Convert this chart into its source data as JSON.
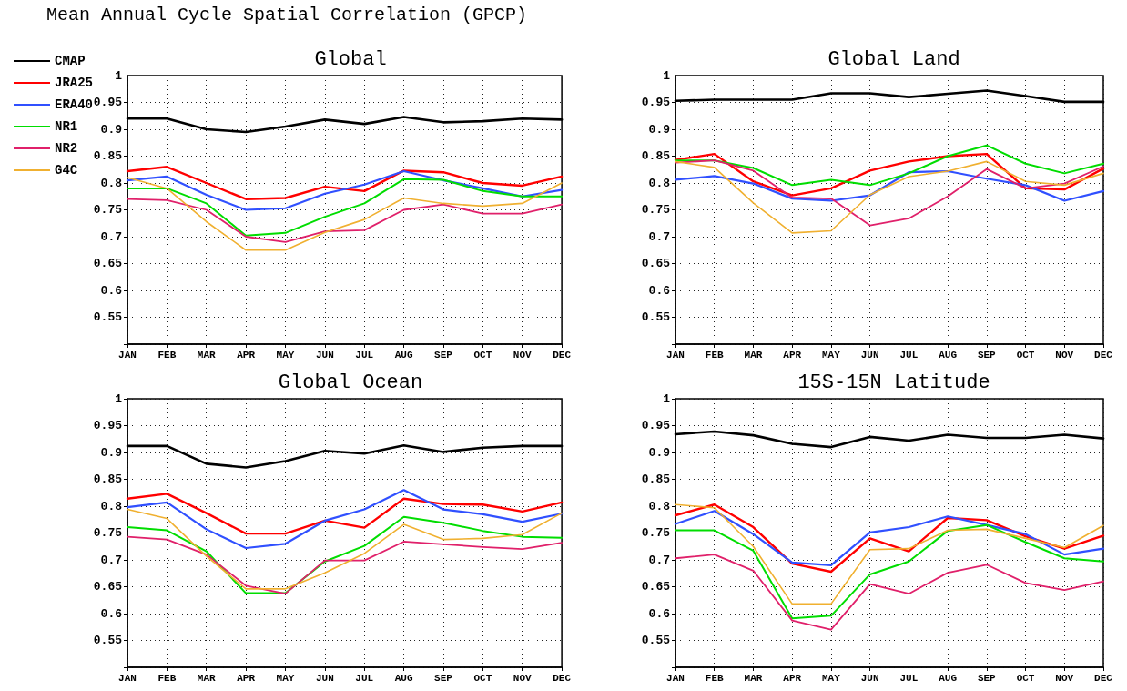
{
  "chart_data": [
    {
      "type": "line",
      "title": "Global",
      "annotations": [
        "Mean Annual Cycle Spatial Correlation (GPCP)"
      ],
      "legend": "left",
      "grid": true,
      "marker": "none",
      "line_style": "solid",
      "categories": [
        "JAN",
        "FEB",
        "MAR",
        "APR",
        "MAY",
        "JUN",
        "JUL",
        "AUG",
        "SEP",
        "OCT",
        "NOV",
        "DEC"
      ],
      "ylim": [
        0.5,
        1
      ],
      "yticks": [
        0.55,
        0.6,
        0.65,
        0.7,
        0.75,
        0.8,
        0.85,
        0.9,
        0.95,
        1
      ],
      "series": [
        {
          "name": "CMAP",
          "color": "#000000",
          "values": [
            0.92,
            0.92,
            0.9,
            0.895,
            0.905,
            0.918,
            0.91,
            0.923,
            0.913,
            0.915,
            0.92,
            0.918
          ]
        },
        {
          "name": "JRA25",
          "color": "#ff0000",
          "values": [
            0.822,
            0.83,
            0.8,
            0.77,
            0.772,
            0.793,
            0.785,
            0.823,
            0.82,
            0.8,
            0.795,
            0.812
          ]
        },
        {
          "name": "ERA40",
          "color": "#3050ff",
          "values": [
            0.805,
            0.812,
            0.778,
            0.75,
            0.753,
            0.78,
            0.797,
            0.822,
            0.805,
            0.79,
            0.775,
            0.787
          ]
        },
        {
          "name": "NR1",
          "color": "#00dd00",
          "values": [
            0.79,
            0.79,
            0.762,
            0.702,
            0.707,
            0.737,
            0.762,
            0.807,
            0.806,
            0.785,
            0.775,
            0.775
          ]
        },
        {
          "name": "NR2",
          "color": "#e0206a",
          "values": [
            0.77,
            0.768,
            0.75,
            0.7,
            0.69,
            0.71,
            0.712,
            0.75,
            0.76,
            0.743,
            0.743,
            0.76
          ]
        },
        {
          "name": "G4C",
          "color": "#f0b030",
          "values": [
            0.81,
            0.79,
            0.728,
            0.675,
            0.675,
            0.708,
            0.732,
            0.772,
            0.762,
            0.757,
            0.762,
            0.8
          ]
        }
      ]
    },
    {
      "type": "line",
      "title": "Global Land",
      "grid": true,
      "marker": "none",
      "line_style": "solid",
      "categories": [
        "JAN",
        "FEB",
        "MAR",
        "APR",
        "MAY",
        "JUN",
        "JUL",
        "AUG",
        "SEP",
        "OCT",
        "NOV",
        "DEC"
      ],
      "ylim": [
        0.5,
        1
      ],
      "yticks": [
        0.55,
        0.6,
        0.65,
        0.7,
        0.75,
        0.8,
        0.85,
        0.9,
        0.95,
        1
      ],
      "series": [
        {
          "color": "#000000",
          "values": [
            0.953,
            0.955,
            0.955,
            0.955,
            0.967,
            0.967,
            0.96,
            0.966,
            0.972,
            0.962,
            0.951,
            0.951
          ]
        },
        {
          "color": "#ff0000",
          "values": [
            0.843,
            0.854,
            0.803,
            0.777,
            0.79,
            0.823,
            0.84,
            0.85,
            0.854,
            0.79,
            0.788,
            0.827
          ]
        },
        {
          "color": "#3050ff",
          "values": [
            0.806,
            0.813,
            0.799,
            0.771,
            0.767,
            0.777,
            0.82,
            0.822,
            0.808,
            0.796,
            0.767,
            0.785
          ]
        },
        {
          "color": "#00dd00",
          "values": [
            0.842,
            0.842,
            0.828,
            0.796,
            0.806,
            0.796,
            0.818,
            0.85,
            0.87,
            0.836,
            0.818,
            0.836
          ]
        },
        {
          "color": "#e0206a",
          "values": [
            0.838,
            0.842,
            0.823,
            0.773,
            0.771,
            0.721,
            0.734,
            0.775,
            0.826,
            0.79,
            0.799,
            0.831
          ]
        },
        {
          "color": "#f0b030",
          "values": [
            0.84,
            0.829,
            0.763,
            0.707,
            0.711,
            0.778,
            0.812,
            0.822,
            0.84,
            0.803,
            0.796,
            0.818
          ]
        }
      ]
    },
    {
      "type": "line",
      "title": "Global Ocean",
      "grid": true,
      "marker": "none",
      "line_style": "solid",
      "categories": [
        "JAN",
        "FEB",
        "MAR",
        "APR",
        "MAY",
        "JUN",
        "JUL",
        "AUG",
        "SEP",
        "OCT",
        "NOV",
        "DEC"
      ],
      "ylim": [
        0.5,
        1
      ],
      "yticks": [
        0.55,
        0.6,
        0.65,
        0.7,
        0.75,
        0.8,
        0.85,
        0.9,
        0.95,
        1
      ],
      "series": [
        {
          "color": "#000000",
          "values": [
            0.912,
            0.912,
            0.879,
            0.872,
            0.884,
            0.903,
            0.898,
            0.913,
            0.901,
            0.909,
            0.912,
            0.912
          ]
        },
        {
          "color": "#ff0000",
          "values": [
            0.814,
            0.823,
            0.787,
            0.749,
            0.749,
            0.773,
            0.76,
            0.814,
            0.804,
            0.803,
            0.79,
            0.807
          ]
        },
        {
          "color": "#3050ff",
          "values": [
            0.798,
            0.807,
            0.757,
            0.722,
            0.73,
            0.773,
            0.794,
            0.83,
            0.794,
            0.785,
            0.771,
            0.786
          ]
        },
        {
          "color": "#00dd00",
          "values": [
            0.761,
            0.755,
            0.716,
            0.638,
            0.638,
            0.697,
            0.726,
            0.78,
            0.769,
            0.754,
            0.743,
            0.741
          ]
        },
        {
          "color": "#e0206a",
          "values": [
            0.743,
            0.738,
            0.71,
            0.652,
            0.637,
            0.699,
            0.699,
            0.734,
            0.729,
            0.724,
            0.72,
            0.732
          ]
        },
        {
          "color": "#f0b030",
          "values": [
            0.794,
            0.777,
            0.707,
            0.646,
            0.646,
            0.676,
            0.712,
            0.766,
            0.738,
            0.74,
            0.747,
            0.787
          ]
        }
      ]
    },
    {
      "type": "line",
      "title": "15S-15N Latitude",
      "grid": true,
      "marker": "none",
      "line_style": "solid",
      "categories": [
        "JAN",
        "FEB",
        "MAR",
        "APR",
        "MAY",
        "JUN",
        "JUL",
        "AUG",
        "SEP",
        "OCT",
        "NOV",
        "DEC"
      ],
      "ylim": [
        0.5,
        1
      ],
      "yticks": [
        0.55,
        0.6,
        0.65,
        0.7,
        0.75,
        0.8,
        0.85,
        0.9,
        0.95,
        1
      ],
      "series": [
        {
          "color": "#000000",
          "values": [
            0.934,
            0.939,
            0.932,
            0.916,
            0.91,
            0.929,
            0.922,
            0.933,
            0.927,
            0.927,
            0.933,
            0.926
          ]
        },
        {
          "color": "#ff0000",
          "values": [
            0.783,
            0.803,
            0.761,
            0.693,
            0.678,
            0.74,
            0.716,
            0.778,
            0.774,
            0.744,
            0.721,
            0.745
          ]
        },
        {
          "color": "#3050ff",
          "values": [
            0.767,
            0.791,
            0.748,
            0.695,
            0.69,
            0.751,
            0.761,
            0.781,
            0.765,
            0.748,
            0.71,
            0.721
          ]
        },
        {
          "color": "#00dd00",
          "values": [
            0.755,
            0.755,
            0.717,
            0.591,
            0.596,
            0.673,
            0.697,
            0.754,
            0.765,
            0.733,
            0.703,
            0.697
          ]
        },
        {
          "color": "#e0206a",
          "values": [
            0.703,
            0.71,
            0.68,
            0.587,
            0.57,
            0.655,
            0.637,
            0.676,
            0.691,
            0.657,
            0.644,
            0.66
          ]
        },
        {
          "color": "#f0b030",
          "values": [
            0.803,
            0.797,
            0.725,
            0.618,
            0.618,
            0.719,
            0.721,
            0.755,
            0.757,
            0.74,
            0.723,
            0.764
          ]
        }
      ]
    }
  ]
}
